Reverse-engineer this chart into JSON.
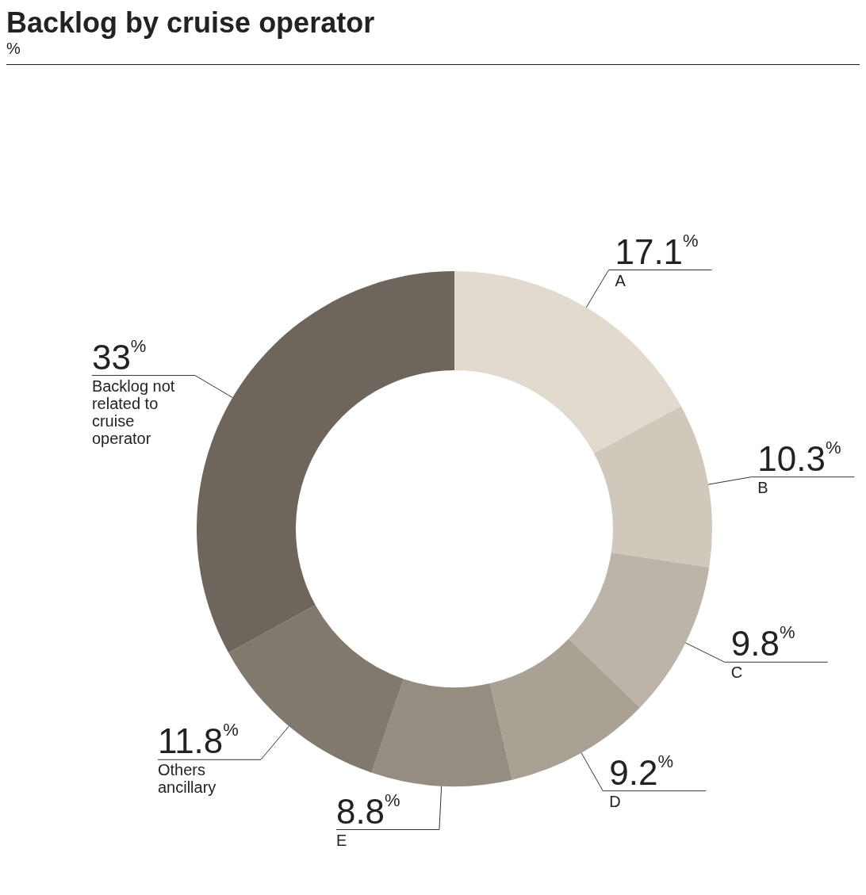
{
  "chart_data": {
    "type": "donut",
    "title": "Backlog by cruise operator",
    "subtitle": "%",
    "categories": [
      "A",
      "B",
      "C",
      "D",
      "E",
      "Others ancillary",
      "Backlog not related to cruise operator"
    ],
    "values": [
      17.1,
      10.3,
      9.8,
      9.2,
      8.8,
      11.8,
      33
    ],
    "colors": [
      "#e2dace",
      "#d0c8bb",
      "#bcb4a9",
      "#aaa195",
      "#958c82",
      "#82796e",
      "#6e655d"
    ],
    "value_labels": [
      "17.1$^{%}$",
      "10.3$^{%}$",
      "9.8$^{%}$",
      "9.2$^{%}$",
      "8.8$^{%}$",
      "11.8$^{%}$",
      "33$^{%}$"
    ],
    "legend": false
  }
}
